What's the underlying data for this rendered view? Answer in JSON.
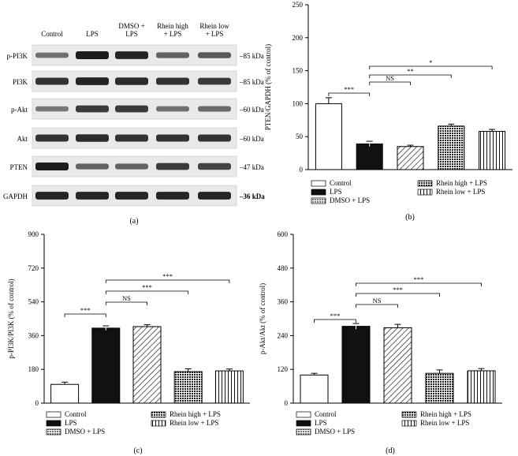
{
  "colors": {
    "ink": "#111111",
    "blot_bg": "#e9e9e9",
    "band": "#1c1c1c",
    "gridline": "#000000"
  },
  "blot": {
    "panel_label": "(a)",
    "lanes": [
      "Control",
      "LPS",
      "DMSO +\nLPS",
      "Rhein high\n+ LPS",
      "Rhein low\n+ LPS"
    ],
    "rows": [
      {
        "label": "p-PI3K",
        "mw": "–85 kDa",
        "intensity": [
          0.45,
          1.0,
          0.95,
          0.55,
          0.6
        ]
      },
      {
        "label": "PI3K",
        "mw": "–85 kDa",
        "intensity": [
          0.85,
          0.95,
          0.9,
          0.85,
          0.8
        ]
      },
      {
        "label": "p-Akt",
        "mw": "–60 kDa",
        "intensity": [
          0.4,
          0.8,
          0.8,
          0.45,
          0.5
        ]
      },
      {
        "label": "Akt",
        "mw": "–60 kDa",
        "intensity": [
          0.85,
          0.9,
          0.85,
          0.85,
          0.85
        ]
      },
      {
        "label": "PTEN",
        "mw": "–47 kDa",
        "intensity": [
          1.0,
          0.55,
          0.55,
          0.8,
          0.75
        ]
      },
      {
        "label": "GAPDH",
        "mw": "–36 kDa",
        "intensity": [
          0.95,
          0.95,
          0.95,
          0.95,
          0.95
        ]
      }
    ]
  },
  "chart_data": [
    {
      "id": "b",
      "panel_label": "(b)",
      "type": "bar",
      "ylabel": "PTEN/GAPDH (% of control)",
      "ylim": [
        0,
        250
      ],
      "yticks": [
        0,
        50,
        100,
        150,
        200,
        250
      ],
      "categories": [
        "Control",
        "LPS",
        "DMSO + LPS",
        "Rhein high + LPS",
        "Rhein low + LPS"
      ],
      "patterns": [
        "white",
        "black",
        "diag",
        "grid",
        "vert"
      ],
      "values": [
        100,
        39,
        35,
        66,
        58
      ],
      "errors": [
        9,
        4,
        2,
        3,
        3
      ],
      "significance": [
        {
          "from": 0,
          "to": 1,
          "label": "***"
        },
        {
          "from": 1,
          "to": 2,
          "label": "NS"
        },
        {
          "from": 1,
          "to": 3,
          "label": "**"
        },
        {
          "from": 1,
          "to": 4,
          "label": "*"
        }
      ],
      "legend": [
        "Control",
        "LPS",
        "DMSO + LPS",
        "Rhein high + LPS",
        "Rhein low + LPS"
      ]
    },
    {
      "id": "c",
      "panel_label": "(c)",
      "type": "bar",
      "ylabel": "p-PI3K/PI3K (% of control)",
      "ylim": [
        0,
        900
      ],
      "yticks": [
        0,
        180,
        360,
        540,
        720,
        900
      ],
      "categories": [
        "Control",
        "LPS",
        "DMSO + LPS",
        "Rhein high + LPS",
        "Rhein low + LPS"
      ],
      "patterns": [
        "white",
        "black",
        "diag",
        "grid",
        "vert"
      ],
      "values": [
        100,
        400,
        408,
        168,
        172
      ],
      "errors": [
        12,
        12,
        10,
        15,
        10
      ],
      "significance": [
        {
          "from": 0,
          "to": 1,
          "label": "***"
        },
        {
          "from": 1,
          "to": 2,
          "label": "NS"
        },
        {
          "from": 1,
          "to": 3,
          "label": "***"
        },
        {
          "from": 1,
          "to": 4,
          "label": "***"
        }
      ],
      "legend": [
        "Control",
        "LPS",
        "DMSO + LPS",
        "Rhein high + LPS",
        "Rhein low + LPS"
      ]
    },
    {
      "id": "d",
      "panel_label": "(d)",
      "type": "bar",
      "ylabel": "p-Akt/Akt (% of control)",
      "ylim": [
        0,
        600
      ],
      "yticks": [
        0,
        120,
        240,
        360,
        480,
        600
      ],
      "categories": [
        "Control",
        "LPS",
        "DMSO + LPS",
        "Rhein high + LPS",
        "Rhein low + LPS"
      ],
      "patterns": [
        "white",
        "black",
        "diag",
        "grid",
        "vert"
      ],
      "values": [
        100,
        273,
        268,
        106,
        115
      ],
      "errors": [
        6,
        10,
        12,
        12,
        8
      ],
      "significance": [
        {
          "from": 0,
          "to": 1,
          "label": "***"
        },
        {
          "from": 1,
          "to": 2,
          "label": "NS"
        },
        {
          "from": 1,
          "to": 3,
          "label": "***"
        },
        {
          "from": 1,
          "to": 4,
          "label": "***"
        }
      ],
      "legend": [
        "Control",
        "LPS",
        "DMSO + LPS",
        "Rhein high + LPS",
        "Rhein low + LPS"
      ]
    }
  ]
}
